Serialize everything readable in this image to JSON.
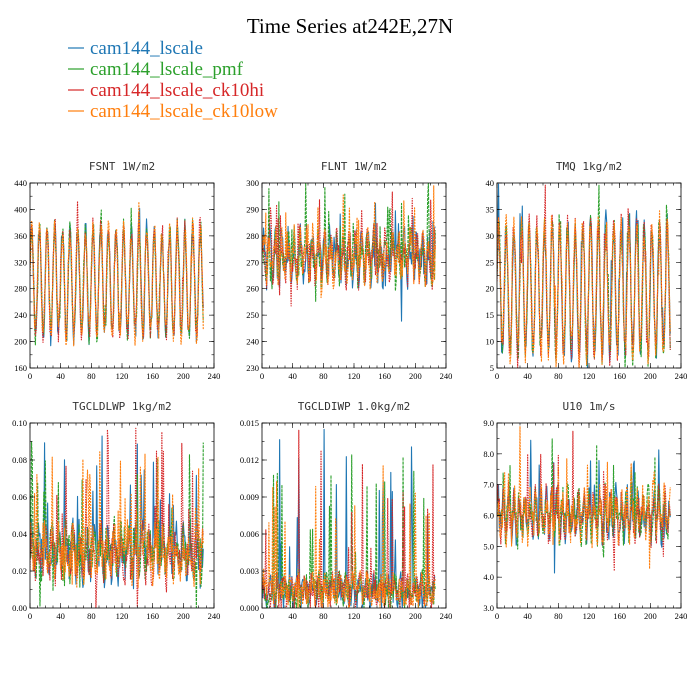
{
  "figure": {
    "title": "Time Series at242E,27N"
  },
  "colors": {
    "cam144_lscale": "#1f77b4",
    "cam144_lscale_pmf": "#2ca02c",
    "cam144_lscale_ck10hi": "#d62728",
    "cam144_lscale_ck10low": "#ff7f0e"
  },
  "legend": [
    {
      "name": "cam144_lscale",
      "color": "#1f77b4"
    },
    {
      "name": "cam144_lscale_pmf",
      "color": "#2ca02c"
    },
    {
      "name": "cam144_lscale_ck10hi",
      "color": "#d62728"
    },
    {
      "name": "cam144_lscale_ck10low",
      "color": "#ff7f0e"
    }
  ],
  "chart_data": [
    {
      "type": "line",
      "title": "FSNT   1W/m2",
      "xlim": [
        0,
        240
      ],
      "ylim": [
        160,
        440
      ],
      "xticks": [
        0,
        40,
        80,
        120,
        160,
        200,
        240
      ],
      "yticks": [
        160,
        200,
        240,
        280,
        320,
        360,
        400,
        440
      ],
      "yticklabels": [
        "160",
        "200",
        "240",
        "280",
        "320",
        "360",
        "400",
        "440"
      ],
      "series_count": 4,
      "x_end": 226,
      "signal": {
        "base": 290,
        "amp": 80,
        "period": 10,
        "noise": 18,
        "spike": 0.06,
        "spikeAmp": 20
      },
      "series": [
        {
          "name": "cam144_lscale",
          "color": "#1f77b4"
        },
        {
          "name": "cam144_lscale_pmf",
          "color": "#2ca02c"
        },
        {
          "name": "cam144_lscale_ck10hi",
          "color": "#d62728"
        },
        {
          "name": "cam144_lscale_ck10low",
          "color": "#ff7f0e"
        }
      ]
    },
    {
      "type": "line",
      "title": "FLNT   1W/m2",
      "xlim": [
        0,
        240
      ],
      "ylim": [
        230,
        300
      ],
      "xticks": [
        0,
        40,
        80,
        120,
        160,
        200,
        240
      ],
      "yticks": [
        230,
        240,
        250,
        260,
        270,
        280,
        290,
        300
      ],
      "yticklabels": [
        "230",
        "240",
        "250",
        "260",
        "270",
        "280",
        "290",
        "300"
      ],
      "x_end": 226,
      "signal": {
        "base": 272,
        "amp": 6,
        "period": 8,
        "noise": 7,
        "spike": 0.08,
        "spikeAmp": 16
      },
      "series": [
        {
          "name": "cam144_lscale",
          "color": "#1f77b4"
        },
        {
          "name": "cam144_lscale_pmf",
          "color": "#2ca02c"
        },
        {
          "name": "cam144_lscale_ck10hi",
          "color": "#d62728"
        },
        {
          "name": "cam144_lscale_ck10low",
          "color": "#ff7f0e"
        }
      ]
    },
    {
      "type": "line",
      "title": "TMQ   1kg/m2",
      "xlim": [
        0,
        240
      ],
      "ylim": [
        5,
        40
      ],
      "xticks": [
        0,
        40,
        80,
        120,
        160,
        200,
        240
      ],
      "yticks": [
        5,
        10,
        15,
        20,
        25,
        30,
        35,
        40
      ],
      "yticklabels": [
        "5",
        "10",
        "15",
        "20",
        "25",
        "30",
        "35",
        "40"
      ],
      "x_end": 226,
      "signal": {
        "base": 20,
        "amp": 12,
        "period": 10,
        "noise": 3,
        "spike": 0.05,
        "spikeAmp": 6
      },
      "series": [
        {
          "name": "cam144_lscale",
          "color": "#1f77b4"
        },
        {
          "name": "cam144_lscale_pmf",
          "color": "#2ca02c"
        },
        {
          "name": "cam144_lscale_ck10hi",
          "color": "#d62728"
        },
        {
          "name": "cam144_lscale_ck10low",
          "color": "#ff7f0e"
        }
      ]
    },
    {
      "type": "line",
      "title": "TGCLDLWP   1kg/m2",
      "xlim": [
        0,
        240
      ],
      "ylim": [
        0,
        0.1
      ],
      "xticks": [
        0,
        40,
        80,
        120,
        160,
        200,
        240
      ],
      "yticks": [
        0,
        0.02,
        0.04,
        0.06,
        0.08,
        0.1
      ],
      "yticklabels": [
        "0.00",
        "0.02",
        "0.04",
        "0.06",
        "0.08",
        "0.10"
      ],
      "x_end": 226,
      "signal": {
        "base": 0.03,
        "amp": 0.008,
        "period": 9,
        "noise": 0.012,
        "spike": 0.08,
        "spikeAmp": 0.04
      },
      "series": [
        {
          "name": "cam144_lscale",
          "color": "#1f77b4"
        },
        {
          "name": "cam144_lscale_pmf",
          "color": "#2ca02c"
        },
        {
          "name": "cam144_lscale_ck10hi",
          "color": "#d62728"
        },
        {
          "name": "cam144_lscale_ck10low",
          "color": "#ff7f0e"
        }
      ]
    },
    {
      "type": "line",
      "title": "TGCLDIWP   1.0kg/m2",
      "xlim": [
        0,
        240
      ],
      "ylim": [
        0,
        0.015
      ],
      "xticks": [
        0,
        40,
        80,
        120,
        160,
        200,
        240
      ],
      "yticks": [
        0,
        0.003,
        0.006,
        0.009,
        0.012,
        0.015
      ],
      "yticklabels": [
        "0.000",
        "0.003",
        "0.006",
        "0.009",
        "0.012",
        "0.015"
      ],
      "x_end": 226,
      "signal": {
        "base": 0.0015,
        "amp": 0.0005,
        "period": 9,
        "noise": 0.0012,
        "spike": 0.09,
        "spikeAmp": 0.008
      },
      "series": [
        {
          "name": "cam144_lscale",
          "color": "#1f77b4"
        },
        {
          "name": "cam144_lscale_pmf",
          "color": "#2ca02c"
        },
        {
          "name": "cam144_lscale_ck10hi",
          "color": "#d62728"
        },
        {
          "name": "cam144_lscale_ck10low",
          "color": "#ff7f0e"
        }
      ]
    },
    {
      "type": "line",
      "title": "U10   1m/s",
      "xlim": [
        0,
        240
      ],
      "ylim": [
        3,
        9
      ],
      "xticks": [
        0,
        40,
        80,
        120,
        160,
        200,
        240
      ],
      "yticks": [
        3,
        4,
        5,
        6,
        7,
        8,
        9
      ],
      "yticklabels": [
        "3.0",
        "4.0",
        "5.0",
        "6.0",
        "7.0",
        "8.0",
        "9.0"
      ],
      "x_end": 226,
      "signal": {
        "base": 6.0,
        "amp": 0.5,
        "period": 7,
        "noise": 0.6,
        "spike": 0.06,
        "spikeAmp": 1.5
      },
      "series": [
        {
          "name": "cam144_lscale",
          "color": "#1f77b4"
        },
        {
          "name": "cam144_lscale_pmf",
          "color": "#2ca02c"
        },
        {
          "name": "cam144_lscale_ck10hi",
          "color": "#d62728"
        },
        {
          "name": "cam144_lscale_ck10low",
          "color": "#ff7f0e"
        }
      ]
    }
  ]
}
